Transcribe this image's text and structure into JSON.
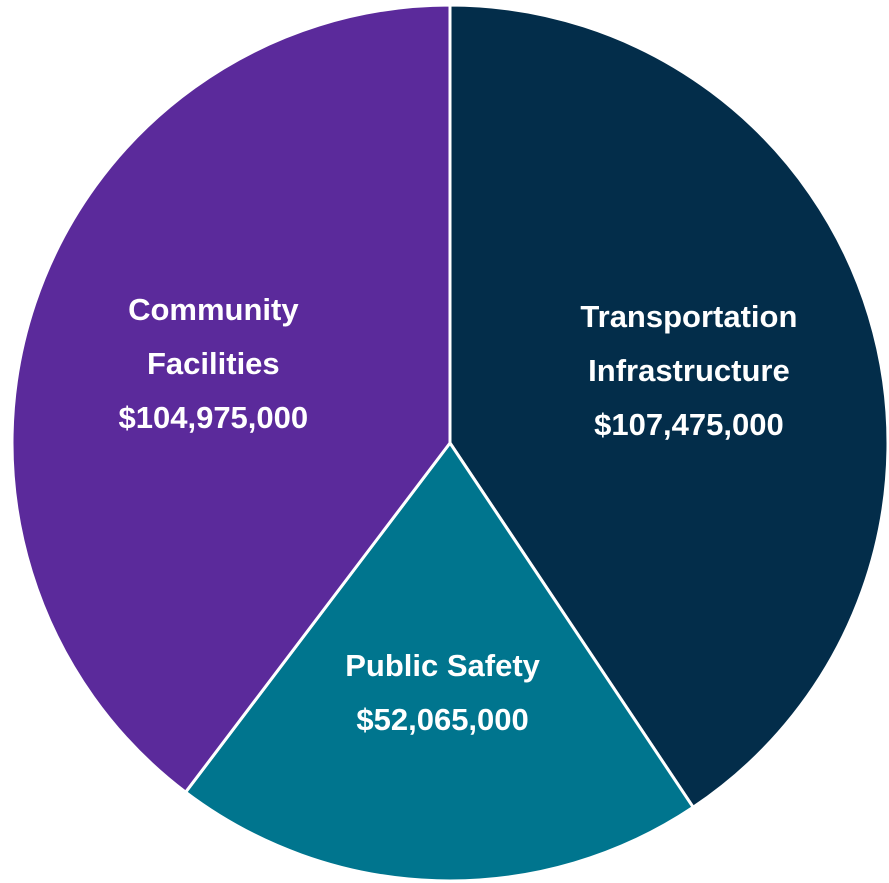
{
  "chart_data": {
    "type": "pie",
    "categories": [
      "Transportation Infrastructure",
      "Public Safety",
      "Community Facilities"
    ],
    "values": [
      107475000,
      52065000,
      104975000
    ],
    "value_labels": [
      "$107,475,000",
      "$52,065,000",
      "$104,975,000"
    ],
    "colors": [
      "#032d4a",
      "#00758e",
      "#5b2a9b"
    ]
  }
}
